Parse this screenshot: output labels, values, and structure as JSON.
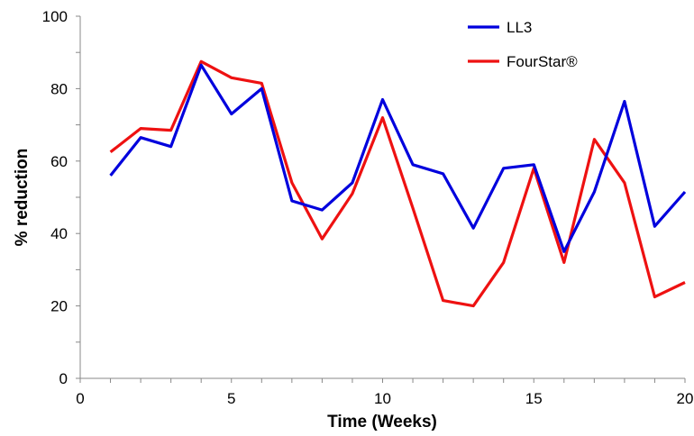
{
  "chart_data": {
    "type": "line",
    "title": "",
    "xlabel": "Time (Weeks)",
    "ylabel": "% reduction",
    "xlim": [
      0,
      20
    ],
    "ylim": [
      0,
      100
    ],
    "xticks": [
      0,
      5,
      10,
      15,
      20
    ],
    "yticks": [
      0,
      20,
      40,
      60,
      80,
      100
    ],
    "grid": false,
    "legend_position": "top-right",
    "x": [
      1,
      2,
      3,
      4,
      5,
      6,
      7,
      8,
      9,
      10,
      11,
      12,
      13,
      14,
      15,
      16,
      17,
      18,
      19,
      20
    ],
    "series": [
      {
        "name": "LL3",
        "color": "#0000dd",
        "values": [
          56,
          66.5,
          64,
          86.5,
          73,
          80,
          49,
          46.5,
          54,
          77,
          59,
          56.5,
          41.5,
          58,
          59,
          35,
          51.5,
          76.5,
          42,
          51.5
        ]
      },
      {
        "name": "FourStar®",
        "color": "#ee1111",
        "values": [
          62.5,
          69,
          68.5,
          87.5,
          83,
          81.5,
          54,
          38.5,
          51,
          72,
          47,
          21.5,
          20,
          32,
          58,
          32,
          66,
          54,
          22.5,
          26.5
        ]
      }
    ]
  }
}
